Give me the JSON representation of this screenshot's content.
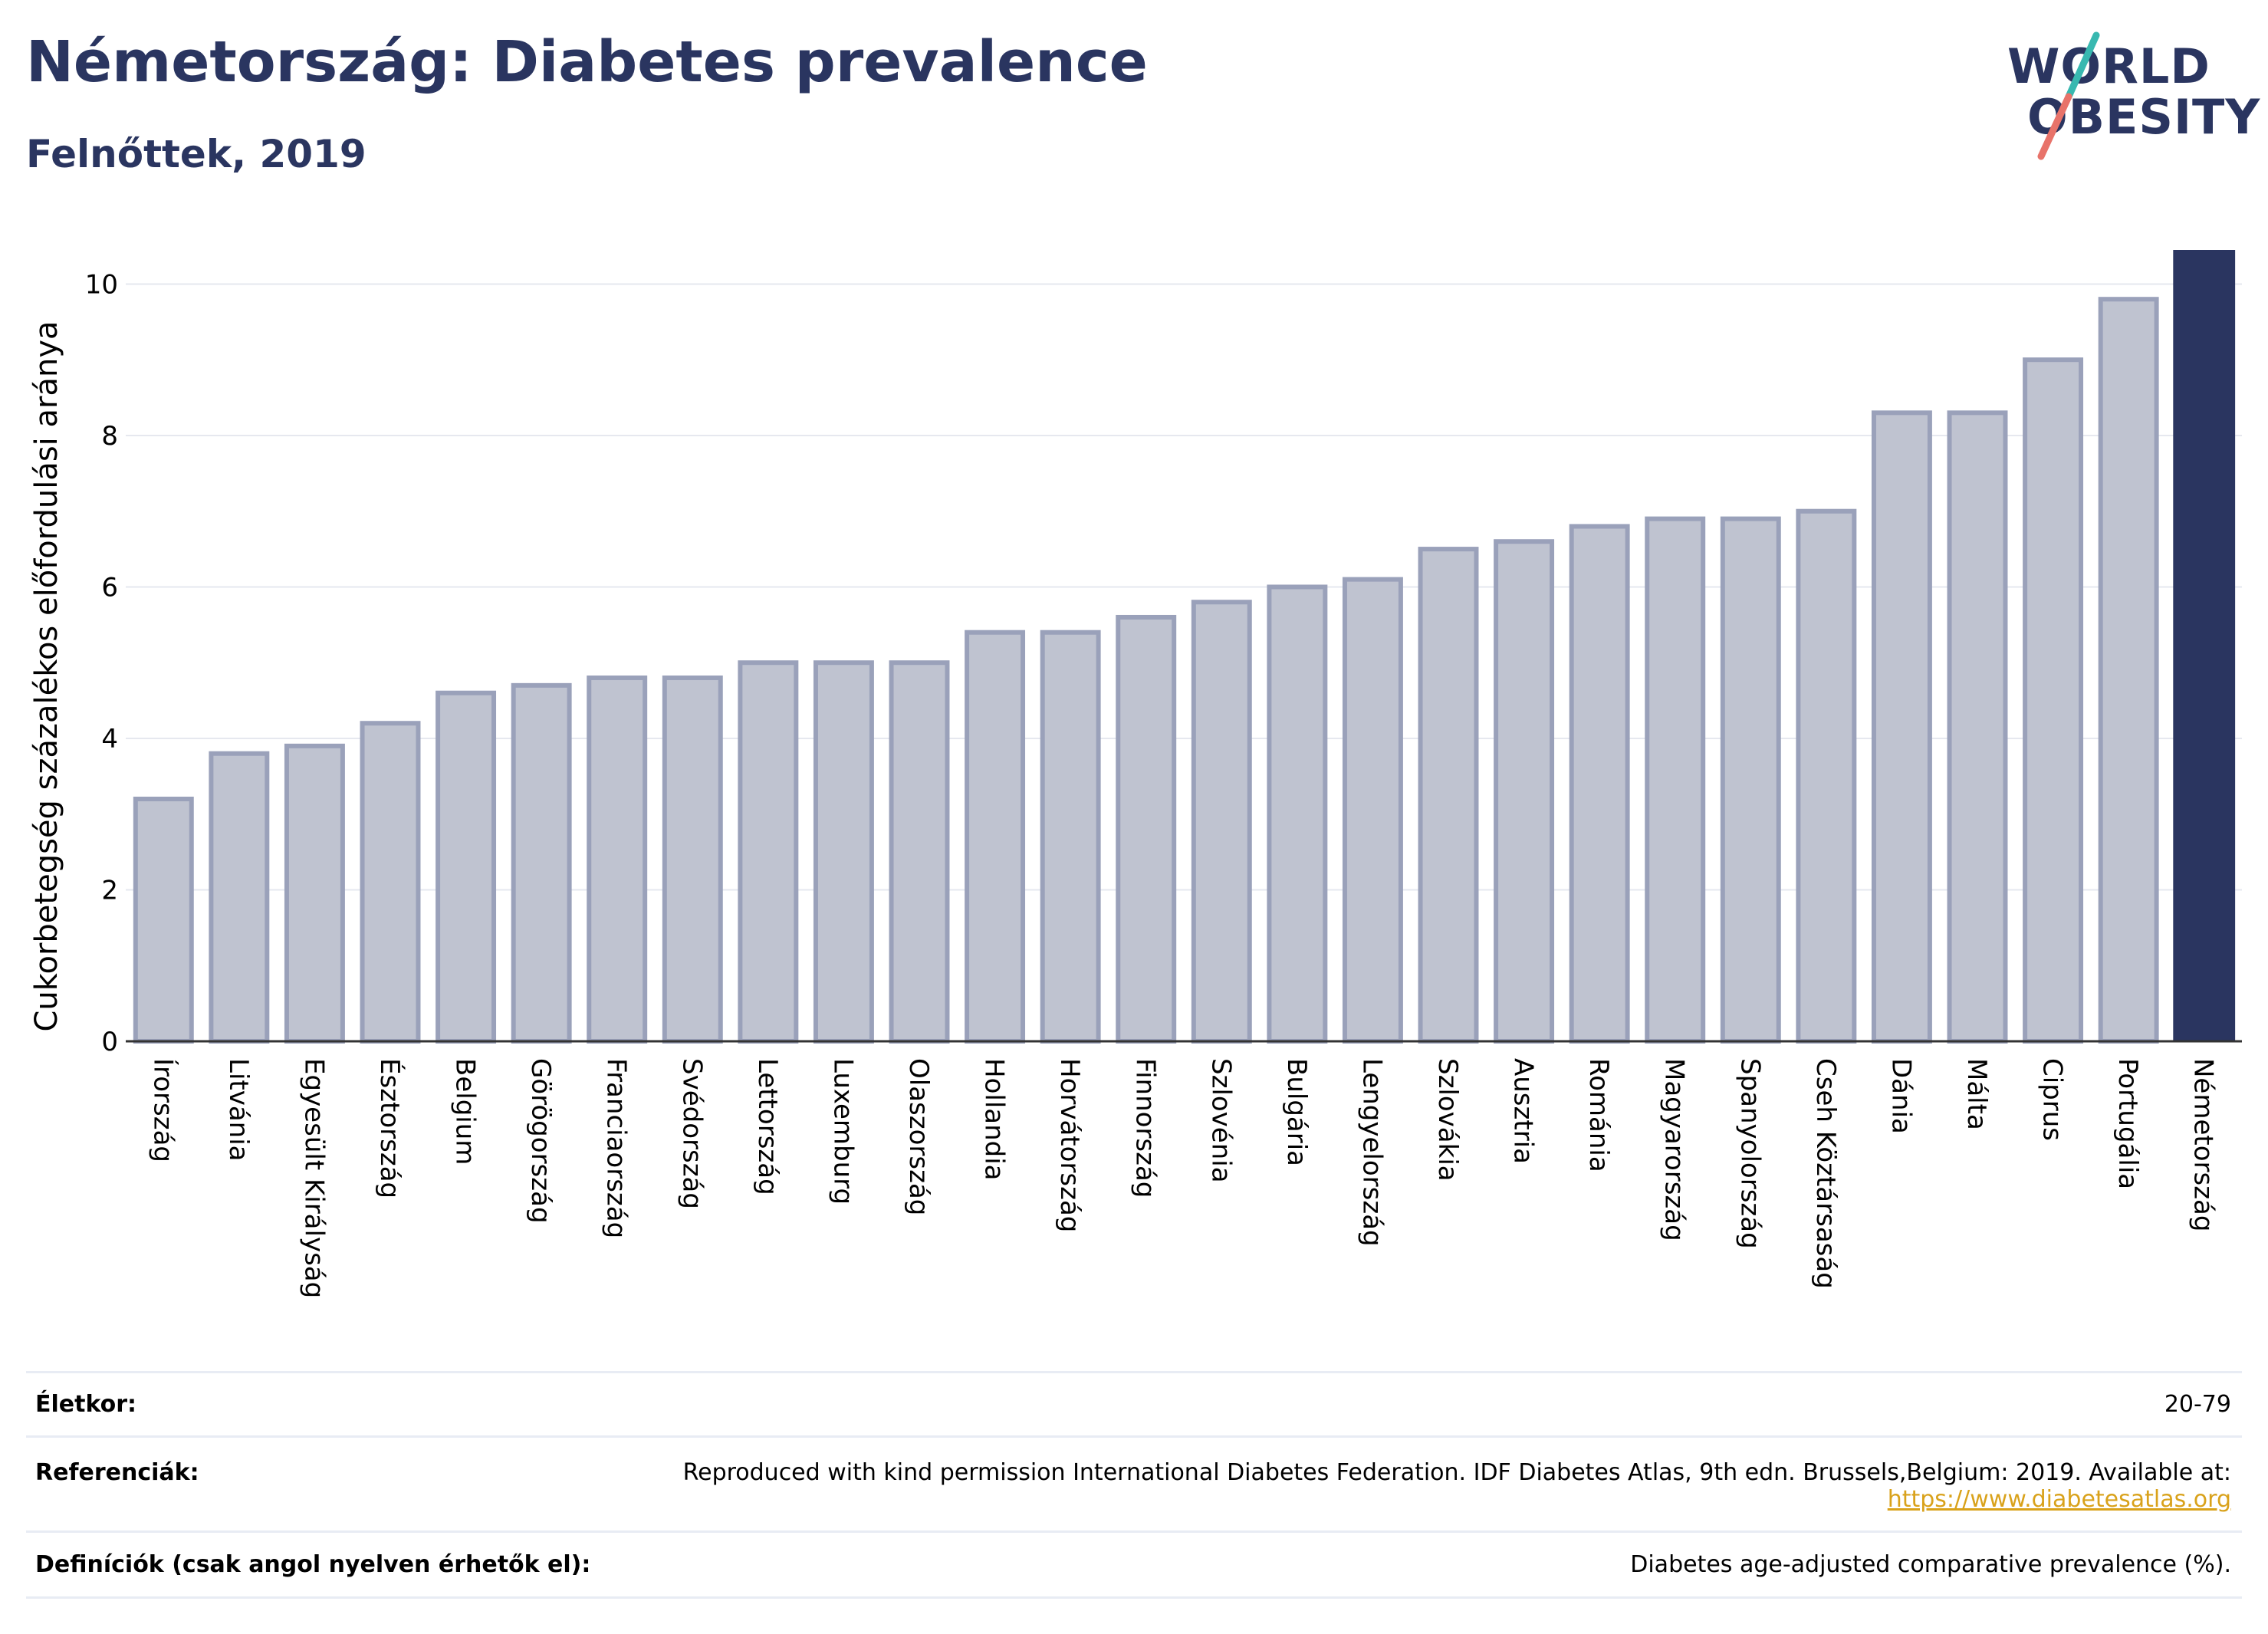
{
  "header": {
    "title": "Németország: Diabetes prevalence",
    "subtitle": "Felnőttek, 2019"
  },
  "logo": {
    "line1": "WORLD",
    "line2": "OBESITY",
    "colors": {
      "text": "#2a3560",
      "slash_top": "#38b8b0",
      "slash_bottom": "#e8736a"
    }
  },
  "colors": {
    "bar_fill": "#bfc3d0",
    "bar_stroke": "#9aa1ba",
    "highlight": "#2a3560",
    "grid": "#e6e8ef"
  },
  "chart_data": {
    "type": "bar",
    "title": "Németország: Diabetes prevalence",
    "subtitle": "Felnőttek, 2019",
    "ylabel": "Cukorbetegség százalékos előfordulási aránya",
    "xlabel": "",
    "ylim": [
      0,
      10.45
    ],
    "yticks": [
      0,
      2,
      4,
      6,
      8,
      10
    ],
    "grid": true,
    "highlight_category": "Németország",
    "categories": [
      "Írország",
      "Litvánia",
      "Egyesült Királyság",
      "Észtország",
      "Belgium",
      "Görögország",
      "Franciaország",
      "Svédország",
      "Lettország",
      "Luxemburg",
      "Olaszország",
      "Hollandia",
      "Horvátország",
      "Finnország",
      "Szlovénia",
      "Bulgária",
      "Lengyelország",
      "Szlovákia",
      "Ausztria",
      "Románia",
      "Magyarország",
      "Spanyolország",
      "Cseh Köztársaság",
      "Dánia",
      "Málta",
      "Ciprus",
      "Portugália",
      "Németország"
    ],
    "values": [
      3.2,
      3.8,
      3.9,
      4.2,
      4.6,
      4.7,
      4.8,
      4.8,
      5.0,
      5.0,
      5.0,
      5.4,
      5.4,
      5.6,
      5.8,
      6.0,
      6.1,
      6.5,
      6.6,
      6.8,
      6.9,
      6.9,
      7.0,
      8.3,
      8.3,
      9.0,
      9.8,
      10.45
    ]
  },
  "footer": {
    "age_label": "Életkor:",
    "age_value": "20-79",
    "ref_label": "Referenciák:",
    "ref_text": "Reproduced with kind permission International Diabetes Federation. IDF Diabetes Atlas, 9th edn. Brussels,Belgium: 2019. Available at:",
    "ref_link": "https://www.diabetesatlas.org",
    "def_label": "Definíciók (csak angol nyelven érhetők el):",
    "def_text": "Diabetes age-adjusted comparative prevalence (%)."
  }
}
